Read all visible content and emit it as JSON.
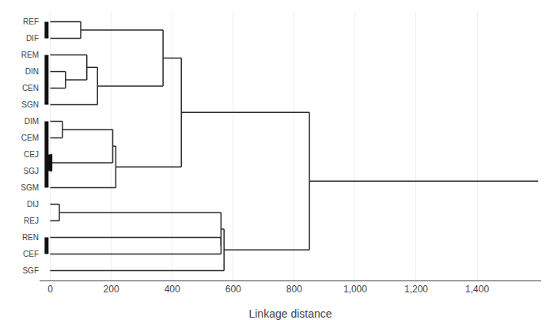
{
  "chart_data": {
    "type": "dendrogram",
    "labels": [
      "REF",
      "DIF",
      "REM",
      "DIN",
      "CEN",
      "SGN",
      "DIM",
      "CEM",
      "CEJ",
      "SGJ",
      "SGM",
      "DIJ",
      "REJ",
      "REN",
      "CEF",
      "SGF"
    ],
    "merges": [
      {
        "children": [
          "REF",
          "DIF"
        ],
        "distance": 100
      },
      {
        "children": [
          "DIN",
          "CEN"
        ],
        "distance": 50
      },
      {
        "children": [
          "REM",
          1
        ],
        "distance": 120
      },
      {
        "children": [
          2,
          "SGN"
        ],
        "distance": 155
      },
      {
        "children": [
          0,
          3
        ],
        "distance": 370
      },
      {
        "children": [
          "DIM",
          "CEM"
        ],
        "distance": 40
      },
      {
        "children": [
          "CEJ",
          "SGJ"
        ],
        "distance": 5
      },
      {
        "children": [
          5,
          6
        ],
        "distance": 205
      },
      {
        "children": [
          "SGM",
          7
        ],
        "distance": 215
      },
      {
        "children": [
          4,
          8
        ],
        "distance": 430
      },
      {
        "children": [
          "DIJ",
          "REJ"
        ],
        "distance": 30
      },
      {
        "children": [
          "REN",
          "CEF"
        ],
        "distance": 560
      },
      {
        "children": [
          10,
          11
        ],
        "distance": 560
      },
      {
        "children": [
          "SGF",
          12
        ],
        "distance": 570
      },
      {
        "children": [
          9,
          13
        ],
        "distance": 850
      }
    ],
    "root_extends_to": 1600,
    "color": "#2a2a2a",
    "bars": [
      {
        "from": "REF",
        "to": "DIF",
        "x": -12
      },
      {
        "from": "REM",
        "to": "SGN",
        "x": -12
      },
      {
        "from": "DIM",
        "to": "SGM",
        "x": -12
      },
      {
        "from": "CEJ",
        "to": "SGJ",
        "x": 0
      },
      {
        "from": "REN",
        "to": "CEF",
        "x": -12
      }
    ],
    "bar_color": "#111111",
    "xlabel": "Linkage distance",
    "xlim": [
      -35,
      1610
    ],
    "xticks": [
      0,
      200,
      400,
      600,
      800,
      {
        "value": 1000,
        "label": "1,000"
      },
      {
        "value": 1200,
        "label": "1,200"
      },
      {
        "value": 1400,
        "label": "1,400"
      }
    ],
    "grid": true
  }
}
